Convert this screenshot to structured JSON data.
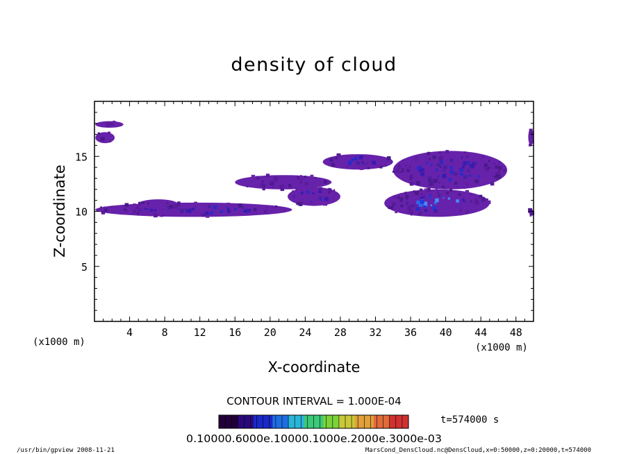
{
  "chart_data": {
    "type": "heatmap",
    "title": "density of cloud",
    "xlabel": "X-coordinate",
    "ylabel": "Z-coordinate",
    "x_unit_left": "(x1000 m)",
    "x_unit_right": "(x1000 m)",
    "y_unit": "(x1000 m)",
    "xlim": [
      0,
      50
    ],
    "ylim": [
      0,
      20
    ],
    "x_ticks": [
      "4",
      "8",
      "12",
      "16",
      "20",
      "24",
      "28",
      "32",
      "36",
      "40",
      "44",
      "48"
    ],
    "y_ticks": [
      "5",
      "10",
      "15"
    ],
    "grid": false,
    "contour_interval_text": "CONTOUR INTERVAL = 1.000E-04",
    "time_label": "t=574000 s",
    "colorbar_labels_text": "0.10000.6000e.10000.1000e.2000e.3000e-03",
    "colorbar_colors": [
      "#23003a",
      "#2a0a7a",
      "#1a2ac8",
      "#1e6ee0",
      "#2ab4d8",
      "#3cc878",
      "#7ad23a",
      "#c8c83a",
      "#e0a03a",
      "#e06a3a",
      "#d03030"
    ],
    "cloud_regions": [
      {
        "x": [
          0.1,
          3.3
        ],
        "z": [
          17.6,
          18.2
        ],
        "level": 1
      },
      {
        "x": [
          0.1,
          2.3
        ],
        "z": [
          16.2,
          17.2
        ],
        "level": 1
      },
      {
        "x": [
          0.1,
          22.5
        ],
        "z": [
          9.5,
          10.8
        ],
        "level": 2
      },
      {
        "x": [
          5.0,
          9.5
        ],
        "z": [
          10.2,
          11.1
        ],
        "level": 1
      },
      {
        "x": [
          16.0,
          27.0
        ],
        "z": [
          12.0,
          13.3
        ],
        "level": 1
      },
      {
        "x": [
          22.0,
          28.0
        ],
        "z": [
          10.5,
          12.2
        ],
        "level": 2
      },
      {
        "x": [
          26.0,
          34.0
        ],
        "z": [
          13.8,
          15.2
        ],
        "level": 2
      },
      {
        "x": [
          34.0,
          47.0
        ],
        "z": [
          12.0,
          15.5
        ],
        "level": 2
      },
      {
        "x": [
          33.0,
          45.0
        ],
        "z": [
          9.5,
          12.0
        ],
        "level": 3
      },
      {
        "x": [
          49.4,
          50.0
        ],
        "z": [
          16.0,
          17.5
        ],
        "level": 1
      },
      {
        "x": [
          49.5,
          50.0
        ],
        "z": [
          9.6,
          10.2
        ],
        "level": 1
      }
    ]
  },
  "footer": {
    "left": "/usr/bin/gpview  2008-11-21",
    "right": "MarsCond_DensCloud.nc@DensCloud,x=0:50000,z=0:20000,t=574000"
  }
}
